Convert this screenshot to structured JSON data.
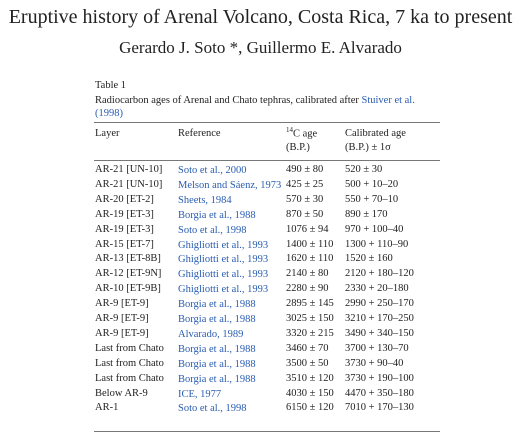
{
  "header": {
    "title": "Eruptive history of Arenal Volcano, Costa Rica, 7 ka to present",
    "authors": "Gerardo J. Soto *, Guillermo E. Alvarado"
  },
  "table": {
    "label": "Table 1",
    "caption": "Radiocarbon ages of Arenal and Chato tephras, calibrated after ",
    "caption_link": "Stuiver et al. (1998)",
    "headers": {
      "layer": "Layer",
      "reference": "Reference",
      "c14_sup": "14",
      "c14": "C age",
      "c14_unit": "(B.P.)",
      "calibrated": "Calibrated age",
      "calibrated_unit": "(B.P.) ± 1σ"
    },
    "rows": [
      [
        "AR-21 [UN-10]",
        "Soto et al., 2000",
        "490 ± 80",
        "520 ± 30"
      ],
      [
        "AR-21 [UN-10]",
        "Melson and Sáenz, 1973",
        "425 ± 25",
        "500 + 10–20"
      ],
      [
        "AR-20 [ET-2]",
        "Sheets, 1984",
        "570 ± 30",
        "550 + 70–10"
      ],
      [
        "AR-19 [ET-3]",
        "Borgia et al., 1988",
        "870 ± 50",
        "890 ± 170"
      ],
      [
        "AR-19 [ET-3]",
        "Soto et al., 1998",
        "1076 ± 94",
        "970 + 100–40"
      ],
      [
        "AR-15 [ET-7]",
        "Ghigliotti et al., 1993",
        "1400 ± 110",
        "1300 + 110–90"
      ],
      [
        "AR-13 [ET-8B]",
        "Ghigliotti et al., 1993",
        "1620 ± 110",
        "1520 ± 160"
      ],
      [
        "AR-12 [ET-9N]",
        "Ghigliotti et al., 1993",
        "2140 ± 80",
        "2120 + 180–120"
      ],
      [
        "AR-10 [ET-9B]",
        "Ghigliotti et al., 1993",
        "2280 ± 90",
        "2330 + 20–180"
      ],
      [
        "AR-9 [ET-9]",
        "Borgia et al., 1988",
        "2895 ± 145",
        "2990 + 250–170"
      ],
      [
        "AR-9 [ET-9]",
        "Borgia et al., 1988",
        "3025 ± 150",
        "3210 + 170–250"
      ],
      [
        "AR-9 [ET-9]",
        "Alvarado, 1989",
        "3320 ± 215",
        "3490 + 340–150"
      ],
      [
        "Last from Chato",
        "Borgia et al., 1988",
        "3460 ± 70",
        "3700 + 130–70"
      ],
      [
        "Last from Chato",
        "Borgia et al., 1988",
        "3500 ± 50",
        "3730 + 90–40"
      ],
      [
        "Last from Chato",
        "Borgia et al., 1988",
        "3510 ± 120",
        "3730 + 190–100"
      ],
      [
        "Below AR-9",
        "ICE, 1977",
        "4030 ± 150",
        "4470 + 350–180"
      ],
      [
        "AR-1",
        "Soto et al., 1998",
        "6150 ± 120",
        "7010 + 170–130"
      ]
    ]
  }
}
